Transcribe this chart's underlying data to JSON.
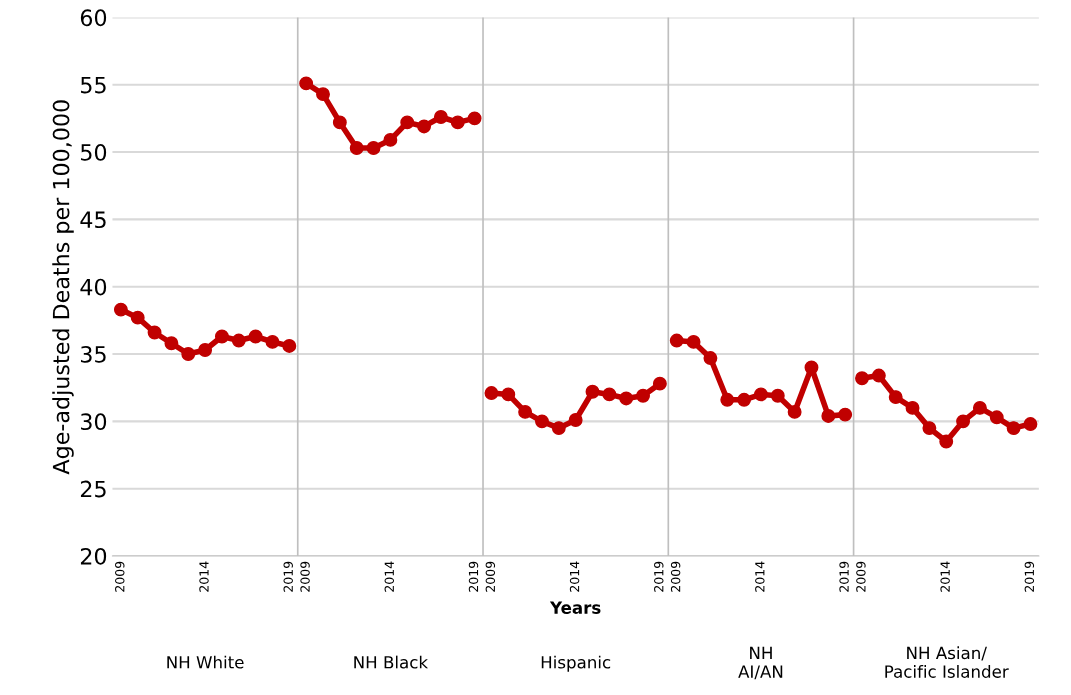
{
  "chart_data": {
    "type": "line",
    "xlabel": "Years",
    "ylabel": "Age-adjusted Deaths per 100,000",
    "categories": [
      "2009",
      null,
      null,
      null,
      null,
      "2014",
      null,
      null,
      null,
      null,
      "2019",
      "2009",
      null,
      null,
      null,
      null,
      "2014",
      null,
      null,
      null,
      null,
      "2019",
      "2009",
      null,
      null,
      null,
      null,
      "2014",
      null,
      null,
      null,
      null,
      "2019",
      "2009",
      null,
      null,
      null,
      null,
      "2014",
      null,
      null,
      null,
      null,
      "2019",
      "2009",
      null,
      null,
      null,
      null,
      "2014",
      null,
      null,
      null,
      null,
      "2019"
    ],
    "series": [
      {
        "color": "#c00000",
        "values": [
          38.3,
          37.7,
          36.6,
          35.8,
          35.0,
          35.3,
          36.3,
          36.0,
          36.3,
          35.9,
          35.6,
          null,
          null,
          null,
          null,
          null,
          null,
          null,
          null,
          null,
          null,
          null,
          null,
          null,
          null,
          null,
          null,
          null,
          null,
          null,
          null,
          null,
          null,
          null,
          null,
          null,
          null,
          null,
          null,
          null,
          null,
          null,
          null,
          null,
          null,
          null,
          null,
          null,
          null,
          null,
          null,
          null,
          null,
          null,
          null
        ]
      },
      {
        "color": "#c00000",
        "values": [
          null,
          null,
          null,
          null,
          null,
          null,
          null,
          null,
          null,
          null,
          null,
          55.1,
          54.3,
          52.2,
          50.3,
          50.3,
          50.9,
          52.2,
          51.9,
          52.6,
          52.2,
          52.5,
          null,
          null,
          null,
          null,
          null,
          null,
          null,
          null,
          null,
          null,
          null,
          null,
          null,
          null,
          null,
          null,
          null,
          null,
          null,
          null,
          null,
          null,
          null,
          null,
          null,
          null,
          null,
          null,
          null,
          null,
          null,
          null,
          null
        ]
      },
      {
        "color": "#c00000",
        "values": [
          null,
          null,
          null,
          null,
          null,
          null,
          null,
          null,
          null,
          null,
          null,
          null,
          null,
          null,
          null,
          null,
          null,
          null,
          null,
          null,
          null,
          null,
          32.1,
          32.0,
          30.7,
          30.0,
          29.5,
          30.1,
          32.2,
          32.0,
          31.7,
          31.9,
          32.8,
          null,
          null,
          null,
          null,
          null,
          null,
          null,
          null,
          null,
          null,
          null,
          null,
          null,
          null,
          null,
          null,
          null,
          null,
          null,
          null,
          null,
          null
        ]
      },
      {
        "color": "#c00000",
        "values": [
          null,
          null,
          null,
          null,
          null,
          null,
          null,
          null,
          null,
          null,
          null,
          null,
          null,
          null,
          null,
          null,
          null,
          null,
          null,
          null,
          null,
          null,
          null,
          null,
          null,
          null,
          null,
          null,
          null,
          null,
          null,
          null,
          null,
          36.0,
          35.9,
          34.7,
          31.6,
          31.6,
          32.0,
          31.9,
          30.7,
          34.0,
          30.4,
          30.5,
          null,
          null,
          null,
          null,
          null,
          null,
          null,
          null,
          null,
          null,
          null
        ]
      },
      {
        "color": "#c00000",
        "values": [
          null,
          null,
          null,
          null,
          null,
          null,
          null,
          null,
          null,
          null,
          null,
          null,
          null,
          null,
          null,
          null,
          null,
          null,
          null,
          null,
          null,
          null,
          null,
          null,
          null,
          null,
          null,
          null,
          null,
          null,
          null,
          null,
          null,
          null,
          null,
          null,
          null,
          null,
          null,
          null,
          null,
          null,
          null,
          null,
          33.2,
          33.4,
          31.8,
          31.0,
          29.5,
          28.5,
          30.0,
          31.0,
          30.3,
          29.5,
          29.8
        ]
      }
    ],
    "ylim": [
      20,
      60
    ],
    "yticks": [
      20,
      25,
      30,
      35,
      40,
      45,
      50,
      55,
      60
    ],
    "annotations": [
      "NH White",
      "NH Black",
      "Hispanic",
      "NH\nAI/AN",
      "NH Asian/\nPacific Islander"
    ],
    "grid": "y",
    "marker": "circle",
    "line_style": "solid"
  }
}
